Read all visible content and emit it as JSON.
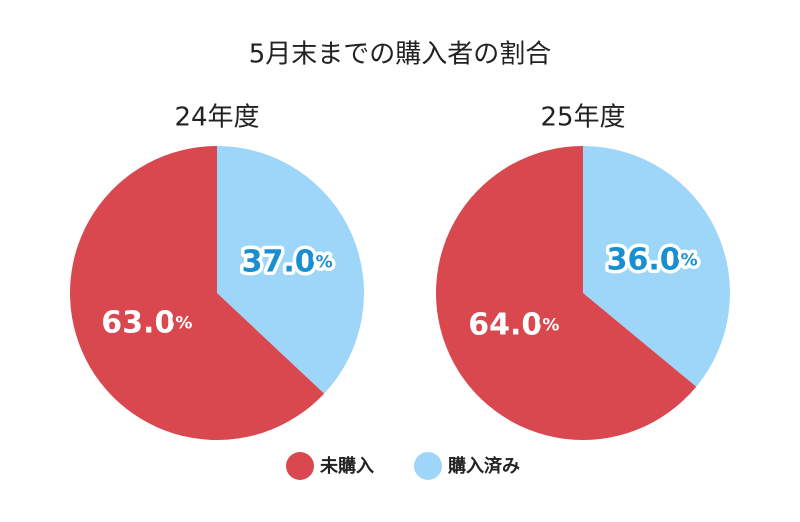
{
  "title": "5月末までの購入者の割合",
  "chart_data": [
    {
      "type": "pie",
      "title": "24年度",
      "categories": [
        "未購入",
        "購入済み"
      ],
      "values": [
        63.0,
        37.0
      ],
      "value_labels": [
        "63.0%",
        "37.0%"
      ],
      "colors": [
        "#d9474f",
        "#9dd6f8"
      ],
      "label_colors": [
        "#ffffff",
        "#1a8fd0"
      ]
    },
    {
      "type": "pie",
      "title": "25年度",
      "categories": [
        "未購入",
        "購入済み"
      ],
      "values": [
        64.0,
        36.0
      ],
      "value_labels": [
        "64.0%",
        "36.0%"
      ],
      "colors": [
        "#d9474f",
        "#9dd6f8"
      ],
      "label_colors": [
        "#ffffff",
        "#1a8fd0"
      ]
    }
  ]
}
